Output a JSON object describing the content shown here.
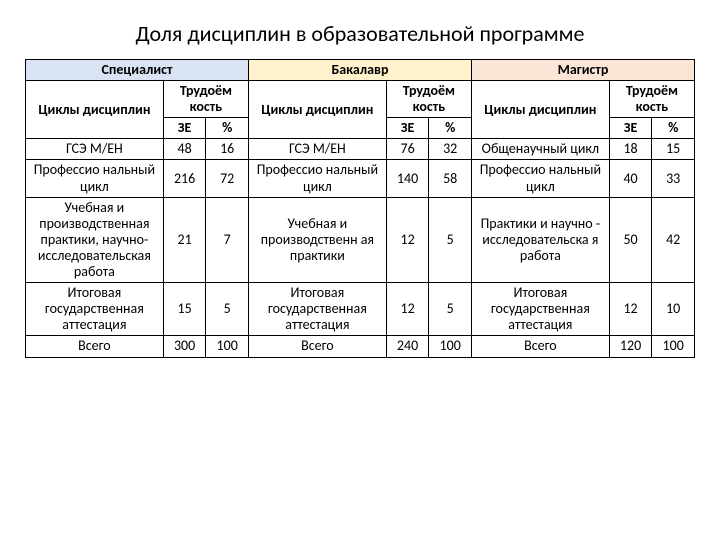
{
  "title": "Доля дисциплин в образовательной программе",
  "colors": {
    "specialist_bg": "#dae3f3",
    "bachelor_bg": "#fff2cc",
    "master_bg": "#fbe5d6",
    "border": "#000000",
    "page_bg": "#ffffff"
  },
  "typography": {
    "title_fontsize": 22,
    "cell_fontsize": 14,
    "font_family": "Calibri"
  },
  "programs": {
    "specialist": "Специалист",
    "bachelor": "Бакалавр",
    "master": "Магистр"
  },
  "headers": {
    "cycles": "Циклы дисциплин",
    "labor": "Трудоём кость",
    "ze": "ЗЕ",
    "pct": "%"
  },
  "rows": [
    {
      "spec_label": "ГСЭ М/ЕН",
      "spec_ze": "48",
      "spec_pct": "16",
      "bak_label": "ГСЭ М/ЕН",
      "bak_ze": "76",
      "bak_pct": "32",
      "mag_label": "Общенаучный цикл",
      "mag_ze": "18",
      "mag_pct": "15"
    },
    {
      "spec_label": "Профессио нальный цикл",
      "spec_ze": "216",
      "spec_pct": "72",
      "bak_label": "Профессио нальный цикл",
      "bak_ze": "140",
      "bak_pct": "58",
      "mag_label": "Профессио нальный цикл",
      "mag_ze": "40",
      "mag_pct": "33"
    },
    {
      "spec_label": "Учебная и производственная практики, научно-исследовательская работа",
      "spec_ze": "21",
      "spec_pct": "7",
      "bak_label": "Учебная и производственн ая практики",
      "bak_ze": "12",
      "bak_pct": "5",
      "mag_label": "Практики и научно - исследовательска я работа",
      "mag_ze": "50",
      "mag_pct": "42"
    },
    {
      "spec_label": "Итоговая государственная аттестация",
      "spec_ze": "15",
      "spec_pct": "5",
      "bak_label": "Итоговая государственная аттестация",
      "bak_ze": "12",
      "bak_pct": "5",
      "mag_label": "Итоговая государственная аттестация",
      "mag_ze": "12",
      "mag_pct": "10"
    },
    {
      "spec_label": "Всего",
      "spec_ze": "300",
      "spec_pct": "100",
      "bak_label": "Всего",
      "bak_ze": "240",
      "bak_pct": "100",
      "mag_label": "Всего",
      "mag_ze": "120",
      "mag_pct": "100"
    }
  ]
}
